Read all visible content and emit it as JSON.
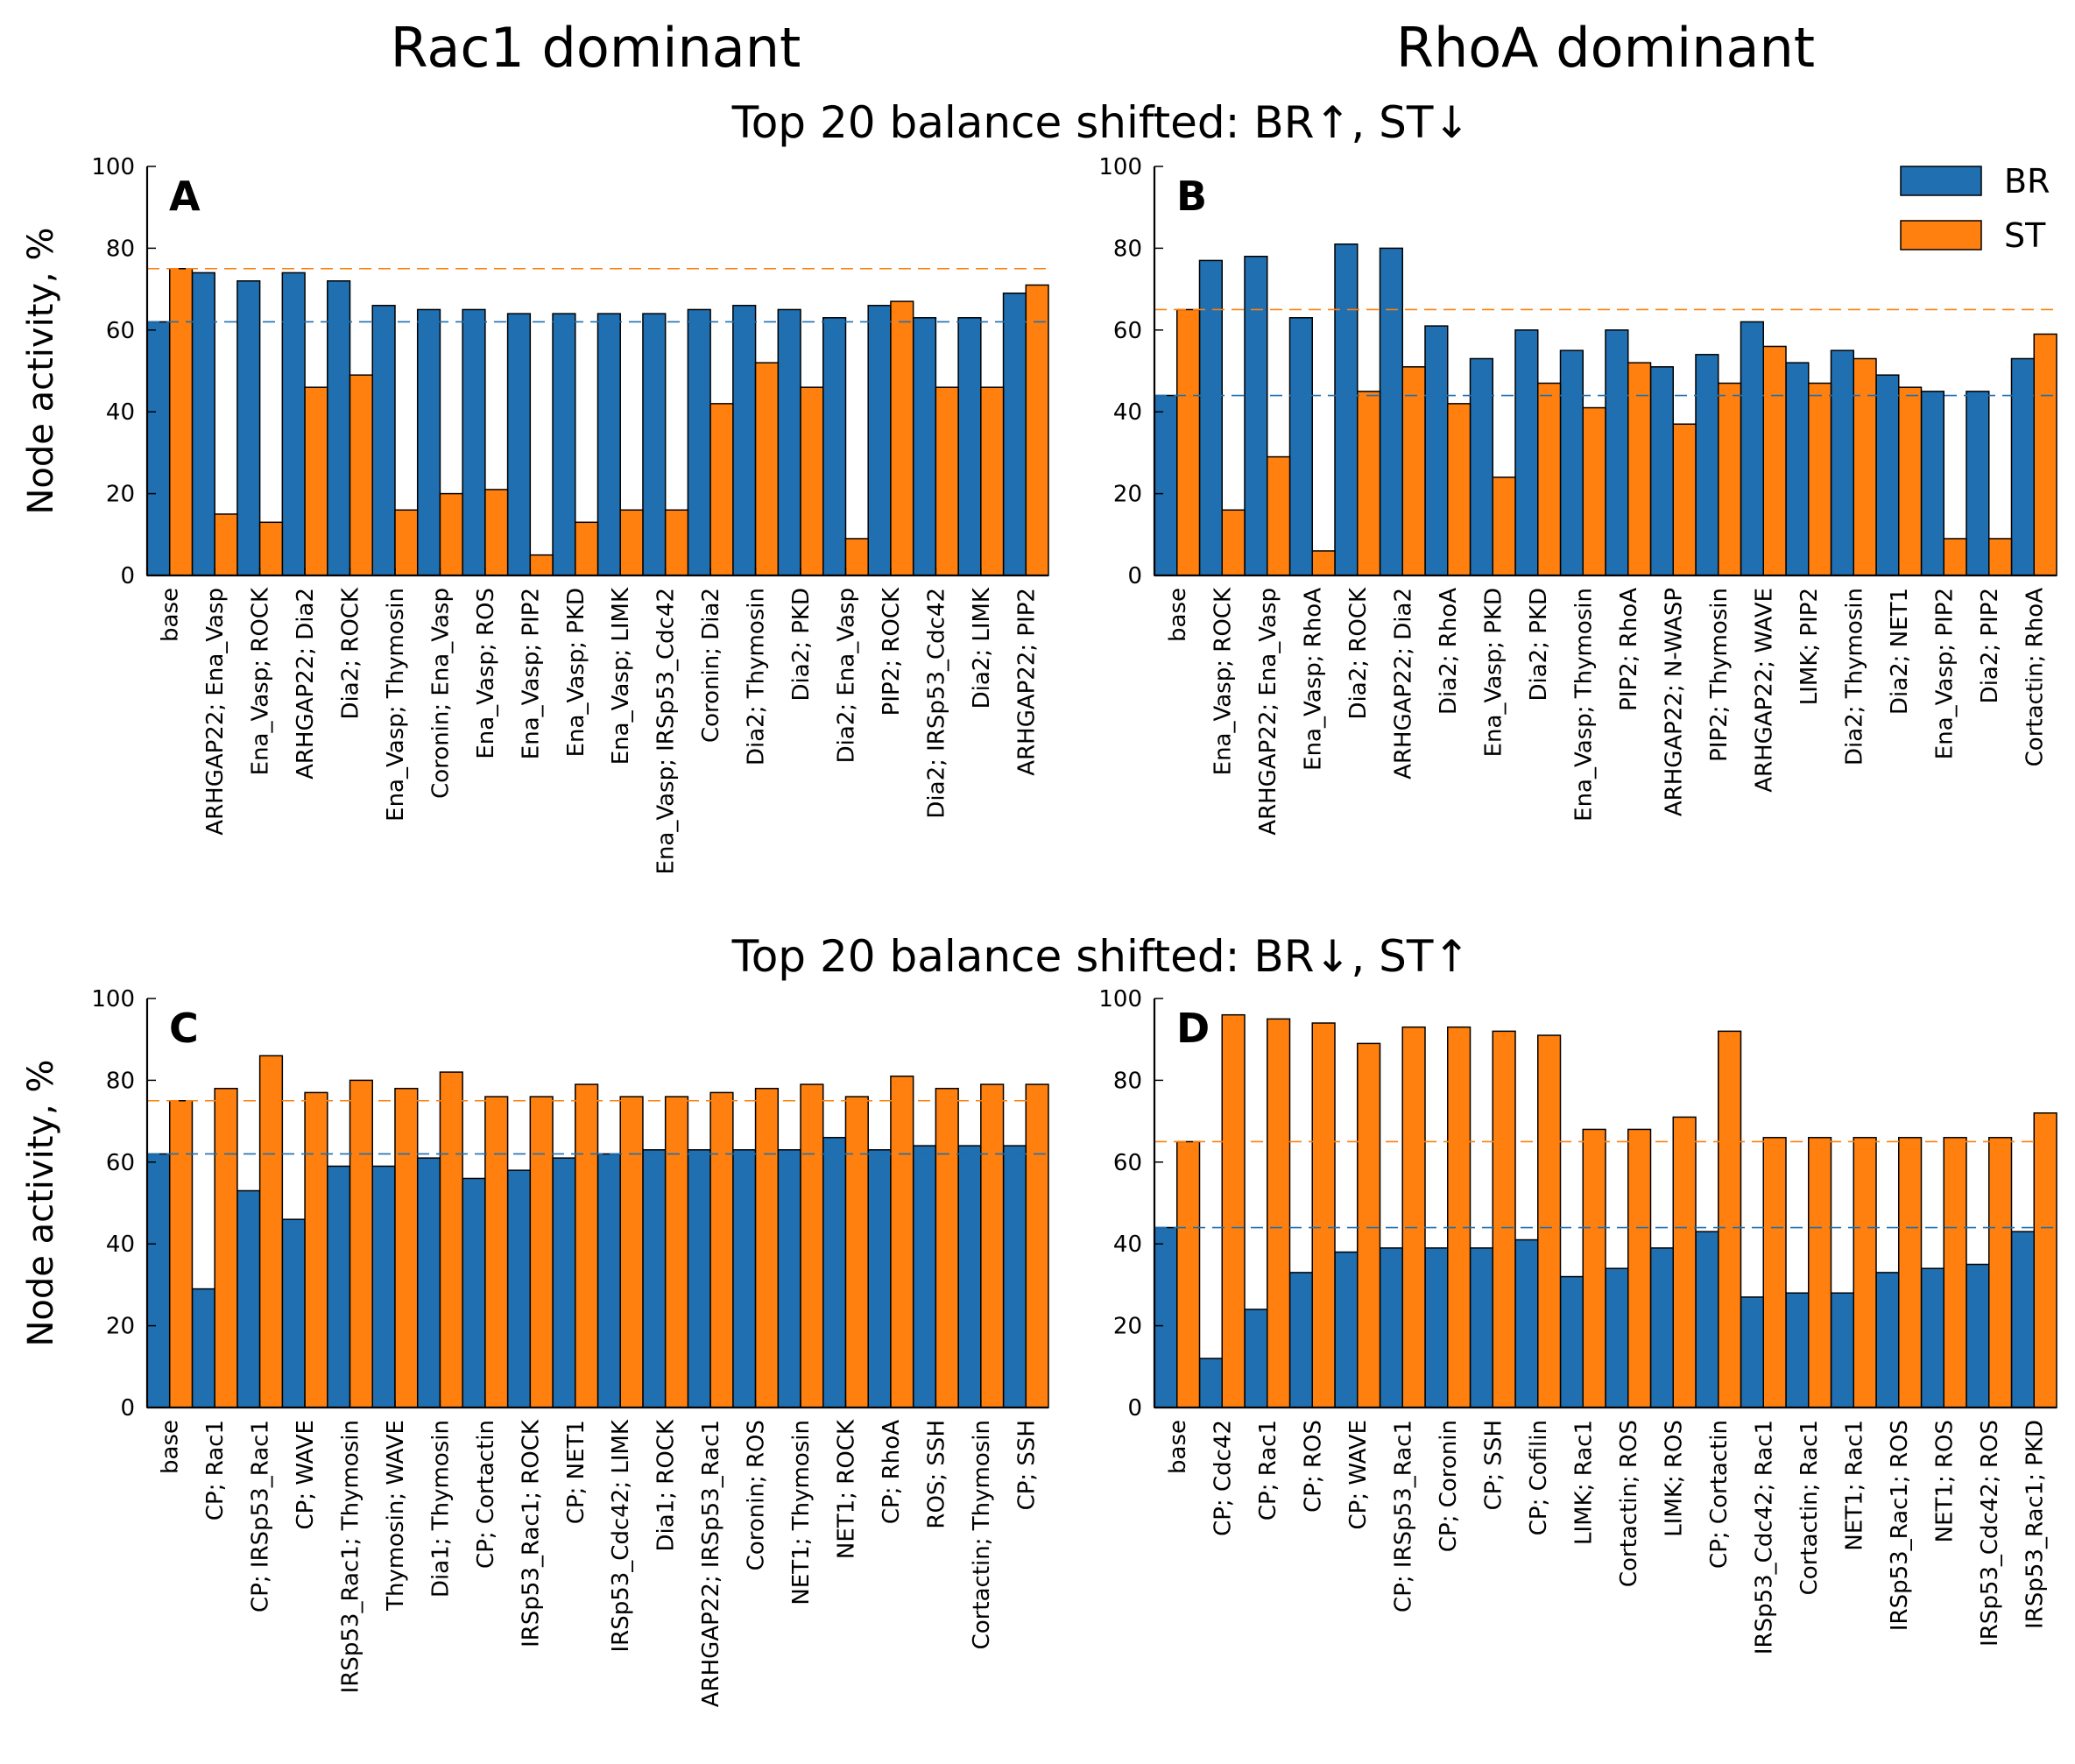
{
  "figure": {
    "column_titles": [
      "Rac1 dominant",
      "RhoA dominant"
    ],
    "row_titles": [
      "Top 20 balance shifted: BR↑, ST↓",
      "Top 20 balance shifted: BR↓, ST↑"
    ],
    "legend": {
      "placement": "top-right",
      "entries": [
        {
          "name": "BR",
          "color": "#1f6fb1"
        },
        {
          "name": "ST",
          "color": "#ff800e"
        }
      ]
    }
  },
  "chart_data": [
    {
      "panel": "A",
      "type": "bar",
      "ylabel": "Node activity, %",
      "ylim": [
        0,
        100
      ],
      "yticks": [
        0,
        20,
        40,
        60,
        80,
        100
      ],
      "baseline_BR": 62,
      "baseline_ST": 75,
      "categories": [
        "base",
        "ARHGAP22; Ena_Vasp",
        "Ena_Vasp; ROCK",
        "ARHGAP22; Dia2",
        "Dia2; ROCK",
        "Ena_Vasp; Thymosin",
        "Coronin; Ena_Vasp",
        "Ena_Vasp; ROS",
        "Ena_Vasp; PIP2",
        "Ena_Vasp; PKD",
        "Ena_Vasp; LIMK",
        "Ena_Vasp; IRSp53_Cdc42",
        "Coronin; Dia2",
        "Dia2; Thymosin",
        "Dia2; PKD",
        "Dia2; Ena_Vasp",
        "PIP2; ROCK",
        "Dia2; IRSp53_Cdc42",
        "Dia2; LIMK",
        "ARHGAP22; PIP2"
      ],
      "series": [
        {
          "name": "BR",
          "values": [
            62,
            74,
            72,
            74,
            72,
            66,
            65,
            65,
            64,
            64,
            64,
            64,
            65,
            66,
            65,
            63,
            66,
            63,
            63,
            69
          ]
        },
        {
          "name": "ST",
          "values": [
            75,
            15,
            13,
            46,
            49,
            16,
            20,
            21,
            5,
            13,
            16,
            16,
            42,
            52,
            46,
            9,
            67,
            46,
            46,
            71
          ]
        }
      ]
    },
    {
      "panel": "B",
      "type": "bar",
      "ylabel": "",
      "ylim": [
        0,
        100
      ],
      "yticks": [
        0,
        20,
        40,
        60,
        80,
        100
      ],
      "baseline_BR": 44,
      "baseline_ST": 65,
      "categories": [
        "base",
        "Ena_Vasp; ROCK",
        "ARHGAP22; Ena_Vasp",
        "Ena_Vasp; RhoA",
        "Dia2; ROCK",
        "ARHGAP22; Dia2",
        "Dia2; RhoA",
        "Ena_Vasp; PKD",
        "Dia2; PKD",
        "Ena_Vasp; Thymosin",
        "PIP2; RhoA",
        "ARHGAP22; N-WASP",
        "PIP2; Thymosin",
        "ARHGAP22; WAVE",
        "LIMK; PIP2",
        "Dia2; Thymosin",
        "Dia2; NET1",
        "Ena_Vasp; PIP2",
        "Dia2; PIP2",
        "Cortactin; RhoA"
      ],
      "series": [
        {
          "name": "BR",
          "values": [
            44,
            77,
            78,
            63,
            81,
            80,
            61,
            53,
            60,
            55,
            60,
            51,
            54,
            62,
            52,
            55,
            49,
            45,
            45,
            53
          ]
        },
        {
          "name": "ST",
          "values": [
            65,
            16,
            29,
            6,
            45,
            51,
            42,
            24,
            47,
            41,
            52,
            37,
            47,
            56,
            47,
            53,
            46,
            9,
            9,
            59
          ]
        }
      ]
    },
    {
      "panel": "C",
      "type": "bar",
      "ylabel": "Node activity, %",
      "ylim": [
        0,
        100
      ],
      "yticks": [
        0,
        20,
        40,
        60,
        80,
        100
      ],
      "baseline_BR": 62,
      "baseline_ST": 75,
      "categories": [
        "base",
        "CP; Rac1",
        "CP; IRSp53_Rac1",
        "CP; WAVE",
        "IRSp53_Rac1; Thymosin",
        "Thymosin; WAVE",
        "Dia1; Thymosin",
        "CP; Cortactin",
        "IRSp53_Rac1; ROCK",
        "CP; NET1",
        "IRSp53_Cdc42; LIMK",
        "Dia1; ROCK",
        "ARHGAP22; IRSp53_Rac1",
        "Coronin; ROS",
        "NET1; Thymosin",
        "NET1; ROCK",
        "CP; RhoA",
        "ROS; SSH",
        "Cortactin; Thymosin",
        "CP; SSH"
      ],
      "series": [
        {
          "name": "BR",
          "values": [
            62,
            29,
            53,
            46,
            59,
            59,
            61,
            56,
            58,
            61,
            62,
            63,
            63,
            63,
            63,
            66,
            63,
            64,
            64,
            64
          ]
        },
        {
          "name": "ST",
          "values": [
            75,
            78,
            86,
            77,
            80,
            78,
            82,
            76,
            76,
            79,
            76,
            76,
            77,
            78,
            79,
            76,
            81,
            78,
            79,
            79
          ]
        }
      ]
    },
    {
      "panel": "D",
      "type": "bar",
      "ylabel": "",
      "ylim": [
        0,
        100
      ],
      "yticks": [
        0,
        20,
        40,
        60,
        80,
        100
      ],
      "baseline_BR": 44,
      "baseline_ST": 65,
      "categories": [
        "base",
        "CP; Cdc42",
        "CP; Rac1",
        "CP; ROS",
        "CP; WAVE",
        "CP; IRSp53_Rac1",
        "CP; Coronin",
        "CP; SSH",
        "CP; Cofilin",
        "LIMK; Rac1",
        "Cortactin; ROS",
        "LIMK; ROS",
        "CP; Cortactin",
        "IRSp53_Cdc42; Rac1",
        "Cortactin; Rac1",
        "NET1; Rac1",
        "IRSp53_Rac1; ROS",
        "NET1; ROS",
        "IRSp53_Cdc42; ROS",
        "IRSp53_Rac1; PKD"
      ],
      "series": [
        {
          "name": "BR",
          "values": [
            44,
            12,
            24,
            33,
            38,
            39,
            39,
            39,
            41,
            32,
            34,
            39,
            43,
            27,
            28,
            28,
            33,
            34,
            35,
            43
          ]
        },
        {
          "name": "ST",
          "values": [
            65,
            96,
            95,
            94,
            89,
            93,
            93,
            92,
            91,
            68,
            68,
            71,
            92,
            66,
            66,
            66,
            66,
            66,
            66,
            72
          ]
        }
      ]
    }
  ]
}
